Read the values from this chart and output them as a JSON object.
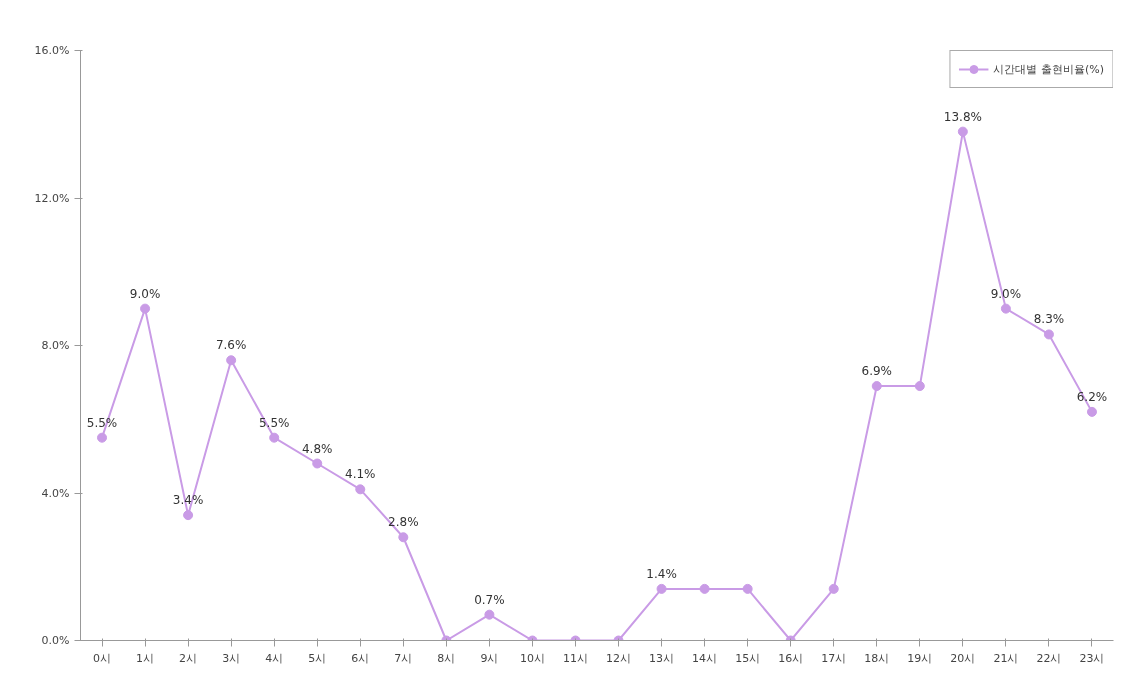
{
  "chart_data": {
    "type": "line",
    "categories": [
      "0시",
      "1시",
      "2시",
      "3시",
      "4시",
      "5시",
      "6시",
      "7시",
      "8시",
      "9시",
      "10시",
      "11시",
      "12시",
      "13시",
      "14시",
      "15시",
      "16시",
      "17시",
      "18시",
      "19시",
      "20시",
      "21시",
      "22시",
      "23시"
    ],
    "series": [
      {
        "name": "시간대별 출현비율(%)",
        "color": "#c99be6",
        "values": [
          5.5,
          9.0,
          3.4,
          7.6,
          5.5,
          4.8,
          4.1,
          2.8,
          0,
          0.7,
          0,
          0,
          0,
          1.4,
          1.4,
          1.4,
          0,
          1.4,
          6.9,
          6.9,
          13.8,
          9.0,
          8.3,
          6.2
        ],
        "value_labels": [
          "5.5%",
          "9.0%",
          "3.4%",
          "7.6%",
          "5.5%",
          "4.8%",
          "4.1%",
          "2.8%",
          null,
          "0.7%",
          null,
          null,
          null,
          "1.4%",
          null,
          null,
          null,
          null,
          "6.9%",
          null,
          "13.8%",
          "9.0%",
          "8.3%",
          "6.2%"
        ]
      }
    ],
    "ylim": [
      0,
      16
    ],
    "yticks": [
      {
        "value": 0,
        "label": "0.0%"
      },
      {
        "value": 4,
        "label": "4.0%"
      },
      {
        "value": 8,
        "label": "8.0%"
      },
      {
        "value": 12,
        "label": "12.0%"
      },
      {
        "value": 16,
        "label": "16.0%"
      }
    ],
    "grid": false,
    "legend": "top right",
    "marker": "circle",
    "line_style": "solid"
  }
}
